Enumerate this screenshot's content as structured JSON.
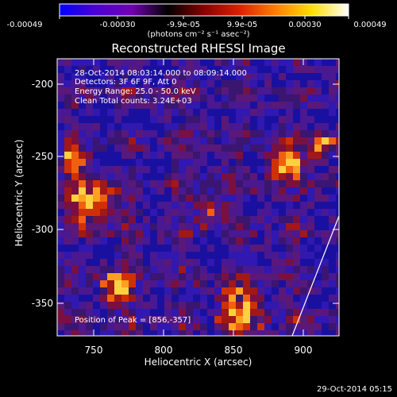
{
  "colorbar": {
    "ticks": [
      "-0.00049",
      "-0.00030",
      "-9.9e-05",
      "9.9e-05",
      "0.00030",
      "0.00049"
    ],
    "units": "(photons cm⁻² s⁻¹ asec⁻²)",
    "colors": [
      "#0000ff",
      "#4b00d8",
      "#7000b0",
      "#000000",
      "#8a0000",
      "#e02000",
      "#ff8000",
      "#ffe000",
      "#ffffff"
    ]
  },
  "title": "Reconstructed RHESSI Image",
  "info": {
    "time": "28-Oct-2014 08:03:14.000 to 08:09:14.000",
    "detectors": "Detectors: 3F 6F 9F, Att 0",
    "energy": "Energy Range: 25.0 - 50.0 keV",
    "clean": "Clean    Total counts: 3.24E+03",
    "peak": "Position of Peak = [856,-357]"
  },
  "axes": {
    "xlabel": "Heliocentric X (arcsec)",
    "ylabel": "Heliocentric Y (arcsec)",
    "xticks": [
      "750",
      "800",
      "850",
      "900"
    ],
    "yticks": [
      "-200",
      "-250",
      "-300",
      "-350"
    ]
  },
  "footer": "29-Oct-2014 05:15"
}
